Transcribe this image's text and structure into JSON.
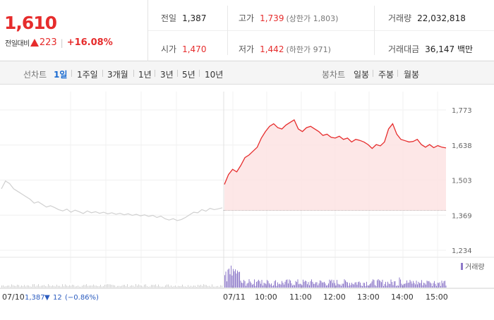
{
  "quote": {
    "price": "1,610",
    "change_label": "전일대비",
    "change_abs": "223",
    "change_pct": "+16.08%"
  },
  "stats": {
    "prev_close": {
      "label": "전일",
      "value": "1,387"
    },
    "high": {
      "label": "고가",
      "value": "1,739",
      "sub": "(상한가 1,803)"
    },
    "volume": {
      "label": "거래량",
      "value": "22,032,818"
    },
    "open": {
      "label": "시가",
      "value": "1,470"
    },
    "low": {
      "label": "저가",
      "value": "1,442",
      "sub": "(하한가 971)"
    },
    "amount": {
      "label": "거래대금",
      "value": "36,147",
      "unit": "백만"
    }
  },
  "tabs": {
    "line_label": "선차트",
    "line_tabs": [
      "1일",
      "1주일",
      "3개월",
      "1년",
      "3년",
      "5년",
      "10년"
    ],
    "candle_label": "봉차트",
    "candle_tabs": [
      "일봉",
      "주봉",
      "월봉"
    ]
  },
  "chart_data": {
    "type": "line",
    "y_ticks": [
      "1,773",
      "1,638",
      "1,503",
      "1,369",
      "1,234"
    ],
    "ylim": [
      1234,
      1773
    ],
    "previous_close": 1387,
    "x_tick_labels": [
      "07/11",
      "10:00",
      "11:00",
      "12:00",
      "13:00",
      "14:00",
      "15:00"
    ],
    "prev_day": {
      "date": "07/10",
      "close": "1,387",
      "change": "12",
      "change_pct": "(−0.86%)"
    },
    "volume_legend": "거래량",
    "series": [
      {
        "values": [
          1487,
          1525,
          1545,
          1535,
          1560,
          1590,
          1600,
          1615,
          1630,
          1665,
          1690,
          1710,
          1720,
          1705,
          1700,
          1715,
          1725,
          1735,
          1700,
          1690,
          1705,
          1710,
          1700,
          1690,
          1675,
          1680,
          1668,
          1665,
          1672,
          1660,
          1665,
          1650,
          1660,
          1656,
          1650,
          1640,
          1625,
          1640,
          1635,
          1650,
          1700,
          1720,
          1680,
          1660,
          1655,
          1650,
          1652,
          1660,
          1640,
          1630,
          1640,
          1628,
          1636,
          1630,
          1627
        ]
      },
      {
        "values": [
          1470,
          1500,
          1490,
          1470,
          1460,
          1450,
          1440,
          1430,
          1415,
          1420,
          1410,
          1400,
          1405,
          1398,
          1390,
          1385,
          1392,
          1380,
          1388,
          1382,
          1375,
          1385,
          1378,
          1382,
          1376,
          1380,
          1374,
          1378,
          1372,
          1376,
          1370,
          1374,
          1368,
          1372,
          1366,
          1370,
          1364,
          1368,
          1360,
          1365,
          1355,
          1350,
          1355,
          1348,
          1352,
          1360,
          1370,
          1380,
          1378,
          1390,
          1384,
          1395,
          1390,
          1393,
          1397
        ]
      }
    ]
  },
  "colors": {
    "up": "#e62c2c",
    "down": "#2a5bbf",
    "fill": "#fde3e3",
    "prev_line": "#d0d0d0",
    "volume": "#8e79c9"
  }
}
